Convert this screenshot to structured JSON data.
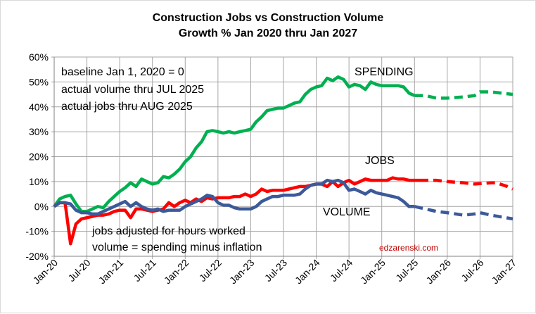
{
  "chart_data": {
    "type": "line",
    "title": "Construction Jobs vs Construction Volume",
    "subtitle": "Growth % Jan 2020 thru Jan 2027",
    "xlabel": "",
    "ylabel": "",
    "ylim": [
      -20,
      60
    ],
    "y_ticks": [
      "-20%",
      "-10%",
      "0%",
      "10%",
      "20%",
      "30%",
      "40%",
      "50%",
      "60%"
    ],
    "x_ticks": [
      "Jan-20",
      "Jul-20",
      "Jan-21",
      "Jul-21",
      "Jan-22",
      "Jul-22",
      "Jan-23",
      "Jul-23",
      "Jan-24",
      "Jul-24",
      "Jan-25",
      "Jul-25",
      "Jan-26",
      "Jul-26",
      "Jan-27"
    ],
    "xlim": [
      "2020-01",
      "2027-01"
    ],
    "grid": true,
    "annotations": {
      "notes_top": [
        "baseline Jan 1, 2020 = 0",
        "actual volume thru JUL 2025",
        "actual jobs thru AUG 2025"
      ],
      "notes_bottom": [
        "jobs adjusted for hours worked",
        "volume = spending minus inflation"
      ],
      "watermark": "edzarenski.com"
    },
    "series": [
      {
        "name": "SPENDING",
        "color": "#00b050",
        "actual": [
          [
            "2020-01",
            0
          ],
          [
            "2020-02",
            3
          ],
          [
            "2020-03",
            4
          ],
          [
            "2020-04",
            4.5
          ],
          [
            "2020-05",
            1
          ],
          [
            "2020-06",
            -2
          ],
          [
            "2020-07",
            -2
          ],
          [
            "2020-08",
            -1
          ],
          [
            "2020-09",
            0
          ],
          [
            "2020-10",
            -0.5
          ],
          [
            "2020-11",
            2
          ],
          [
            "2020-12",
            4
          ],
          [
            "2021-01",
            6
          ],
          [
            "2021-02",
            7.5
          ],
          [
            "2021-03",
            9.5
          ],
          [
            "2021-04",
            8
          ],
          [
            "2021-05",
            11
          ],
          [
            "2021-06",
            10
          ],
          [
            "2021-07",
            9
          ],
          [
            "2021-08",
            9.5
          ],
          [
            "2021-09",
            12
          ],
          [
            "2021-10",
            11.5
          ],
          [
            "2021-11",
            13
          ],
          [
            "2021-12",
            15
          ],
          [
            "2022-01",
            18
          ],
          [
            "2022-02",
            20
          ],
          [
            "2022-03",
            23.5
          ],
          [
            "2022-04",
            26
          ],
          [
            "2022-05",
            30
          ],
          [
            "2022-06",
            30.5
          ],
          [
            "2022-07",
            30
          ],
          [
            "2022-08",
            29.5
          ],
          [
            "2022-09",
            30
          ],
          [
            "2022-10",
            29.5
          ],
          [
            "2022-11",
            30
          ],
          [
            "2022-12",
            30.5
          ],
          [
            "2023-01",
            31
          ],
          [
            "2023-02",
            34
          ],
          [
            "2023-03",
            36
          ],
          [
            "2023-04",
            38.5
          ],
          [
            "2023-05",
            39
          ],
          [
            "2023-06",
            39.5
          ],
          [
            "2023-07",
            39.5
          ],
          [
            "2023-08",
            40.5
          ],
          [
            "2023-09",
            41.5
          ],
          [
            "2023-10",
            42
          ],
          [
            "2023-11",
            45
          ],
          [
            "2023-12",
            47
          ],
          [
            "2024-01",
            48
          ],
          [
            "2024-02",
            48.5
          ],
          [
            "2024-03",
            51.5
          ],
          [
            "2024-04",
            50.5
          ],
          [
            "2024-05",
            52
          ],
          [
            "2024-06",
            51
          ],
          [
            "2024-07",
            48
          ],
          [
            "2024-08",
            49
          ],
          [
            "2024-09",
            48.5
          ],
          [
            "2024-10",
            47
          ],
          [
            "2024-11",
            50
          ],
          [
            "2024-12",
            49
          ],
          [
            "2025-01",
            48.5
          ],
          [
            "2025-02",
            48.5
          ],
          [
            "2025-03",
            48.5
          ],
          [
            "2025-04",
            48.5
          ],
          [
            "2025-05",
            48
          ],
          [
            "2025-06",
            45.5
          ],
          [
            "2025-07",
            44.5
          ]
        ],
        "forecast": [
          [
            "2025-07",
            44.5
          ],
          [
            "2025-09",
            44.5
          ],
          [
            "2025-11",
            43.5
          ],
          [
            "2026-01",
            43.5
          ],
          [
            "2026-04",
            44
          ],
          [
            "2026-06",
            44.5
          ],
          [
            "2026-07",
            46
          ],
          [
            "2026-09",
            46
          ],
          [
            "2026-11",
            45.5
          ],
          [
            "2027-01",
            45
          ]
        ]
      },
      {
        "name": "JOBS",
        "color": "#ff0000",
        "actual": [
          [
            "2020-01",
            0
          ],
          [
            "2020-02",
            1.5
          ],
          [
            "2020-03",
            1.5
          ],
          [
            "2020-04",
            -15
          ],
          [
            "2020-05",
            -7
          ],
          [
            "2020-06",
            -5
          ],
          [
            "2020-07",
            -4.5
          ],
          [
            "2020-08",
            -4
          ],
          [
            "2020-09",
            -3.5
          ],
          [
            "2020-10",
            -3.5
          ],
          [
            "2020-11",
            -3
          ],
          [
            "2020-12",
            -2
          ],
          [
            "2021-01",
            -1.5
          ],
          [
            "2021-02",
            -1.5
          ],
          [
            "2021-03",
            -4.5
          ],
          [
            "2021-04",
            -1
          ],
          [
            "2021-05",
            -1
          ],
          [
            "2021-06",
            -1.5
          ],
          [
            "2021-07",
            -2
          ],
          [
            "2021-08",
            -1.5
          ],
          [
            "2021-09",
            -1
          ],
          [
            "2021-10",
            1.5
          ],
          [
            "2021-11",
            0
          ],
          [
            "2021-12",
            1.5
          ],
          [
            "2022-01",
            2.5
          ],
          [
            "2022-02",
            1.5
          ],
          [
            "2022-03",
            3
          ],
          [
            "2022-04",
            2
          ],
          [
            "2022-05",
            3.5
          ],
          [
            "2022-06",
            3
          ],
          [
            "2022-07",
            3.5
          ],
          [
            "2022-08",
            3.5
          ],
          [
            "2022-09",
            3.5
          ],
          [
            "2022-10",
            4
          ],
          [
            "2022-11",
            4
          ],
          [
            "2022-12",
            5
          ],
          [
            "2023-01",
            4
          ],
          [
            "2023-02",
            5
          ],
          [
            "2023-03",
            7
          ],
          [
            "2023-04",
            6
          ],
          [
            "2023-05",
            6.5
          ],
          [
            "2023-06",
            6.5
          ],
          [
            "2023-07",
            6.5
          ],
          [
            "2023-08",
            7
          ],
          [
            "2023-09",
            7.5
          ],
          [
            "2023-10",
            8
          ],
          [
            "2023-11",
            8
          ],
          [
            "2023-12",
            8.5
          ],
          [
            "2024-01",
            9
          ],
          [
            "2024-02",
            9
          ],
          [
            "2024-03",
            8
          ],
          [
            "2024-04",
            10
          ],
          [
            "2024-05",
            8
          ],
          [
            "2024-06",
            9.5
          ],
          [
            "2024-07",
            10.5
          ],
          [
            "2024-08",
            9
          ],
          [
            "2024-09",
            10
          ],
          [
            "2024-10",
            11
          ],
          [
            "2024-11",
            10.5
          ],
          [
            "2024-12",
            10.5
          ],
          [
            "2025-01",
            10.5
          ],
          [
            "2025-02",
            10.5
          ],
          [
            "2025-03",
            11.5
          ],
          [
            "2025-04",
            11
          ],
          [
            "2025-05",
            11
          ],
          [
            "2025-06",
            10.5
          ],
          [
            "2025-07",
            10.5
          ],
          [
            "2025-08",
            10.5
          ]
        ],
        "forecast": [
          [
            "2025-08",
            10.5
          ],
          [
            "2025-11",
            10.5
          ],
          [
            "2026-01",
            10
          ],
          [
            "2026-04",
            9.5
          ],
          [
            "2026-06",
            9
          ],
          [
            "2026-09",
            9.5
          ],
          [
            "2026-10",
            9.5
          ],
          [
            "2026-12",
            8
          ],
          [
            "2027-01",
            7
          ]
        ]
      },
      {
        "name": "VOLUME",
        "color": "#3c5a9a",
        "actual": [
          [
            "2020-01",
            0
          ],
          [
            "2020-02",
            1.5
          ],
          [
            "2020-03",
            1.5
          ],
          [
            "2020-04",
            1
          ],
          [
            "2020-05",
            -1.5
          ],
          [
            "2020-06",
            -2.5
          ],
          [
            "2020-07",
            -2.5
          ],
          [
            "2020-08",
            -3
          ],
          [
            "2020-09",
            -3
          ],
          [
            "2020-10",
            -2
          ],
          [
            "2020-11",
            -1
          ],
          [
            "2020-12",
            0
          ],
          [
            "2021-01",
            1
          ],
          [
            "2021-02",
            2
          ],
          [
            "2021-03",
            0
          ],
          [
            "2021-04",
            1.5
          ],
          [
            "2021-05",
            0
          ],
          [
            "2021-06",
            -1
          ],
          [
            "2021-07",
            -1.5
          ],
          [
            "2021-08",
            -1
          ],
          [
            "2021-09",
            -2
          ],
          [
            "2021-10",
            -1.5
          ],
          [
            "2021-11",
            -1.5
          ],
          [
            "2021-12",
            -1.5
          ],
          [
            "2022-01",
            0
          ],
          [
            "2022-02",
            1
          ],
          [
            "2022-03",
            2
          ],
          [
            "2022-04",
            3
          ],
          [
            "2022-05",
            4.5
          ],
          [
            "2022-06",
            4
          ],
          [
            "2022-07",
            1.5
          ],
          [
            "2022-08",
            0.5
          ],
          [
            "2022-09",
            0.5
          ],
          [
            "2022-10",
            -0.5
          ],
          [
            "2022-11",
            -1
          ],
          [
            "2022-12",
            -1
          ],
          [
            "2023-01",
            -1
          ],
          [
            "2023-02",
            0
          ],
          [
            "2023-03",
            2
          ],
          [
            "2023-04",
            3
          ],
          [
            "2023-05",
            4
          ],
          [
            "2023-06",
            4
          ],
          [
            "2023-07",
            4.5
          ],
          [
            "2023-08",
            4.5
          ],
          [
            "2023-09",
            4.5
          ],
          [
            "2023-10",
            5
          ],
          [
            "2023-11",
            7
          ],
          [
            "2023-12",
            8.5
          ],
          [
            "2024-01",
            9
          ],
          [
            "2024-02",
            9
          ],
          [
            "2024-03",
            10.5
          ],
          [
            "2024-04",
            10
          ],
          [
            "2024-05",
            10.5
          ],
          [
            "2024-06",
            9.5
          ],
          [
            "2024-07",
            6.5
          ],
          [
            "2024-08",
            7
          ],
          [
            "2024-09",
            6
          ],
          [
            "2024-10",
            5
          ],
          [
            "2024-11",
            6.5
          ],
          [
            "2024-12",
            5.5
          ],
          [
            "2025-01",
            5
          ],
          [
            "2025-02",
            4.5
          ],
          [
            "2025-03",
            4
          ],
          [
            "2025-04",
            3.5
          ],
          [
            "2025-05",
            2
          ],
          [
            "2025-06",
            0
          ],
          [
            "2025-07",
            0
          ]
        ],
        "forecast": [
          [
            "2025-07",
            0
          ],
          [
            "2025-09",
            -1
          ],
          [
            "2025-11",
            -2
          ],
          [
            "2026-01",
            -2.5
          ],
          [
            "2026-04",
            -3.5
          ],
          [
            "2026-06",
            -3
          ],
          [
            "2026-07",
            -2.5
          ],
          [
            "2026-09",
            -3.5
          ],
          [
            "2027-01",
            -5
          ]
        ]
      }
    ]
  }
}
